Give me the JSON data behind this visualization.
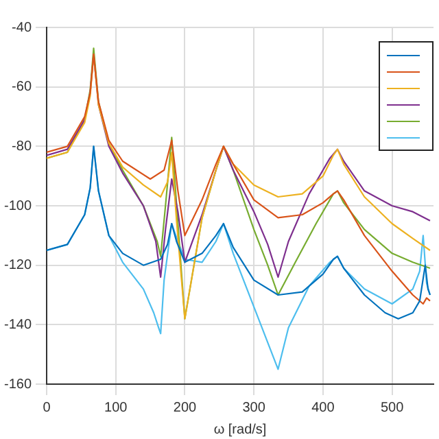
{
  "chart_data": {
    "type": "line",
    "xlabel": "ω [rad/s]",
    "xlim": [
      0,
      560
    ],
    "ylim": [
      -160,
      -40
    ],
    "xticks": [
      0,
      100,
      200,
      300,
      400,
      500
    ],
    "yticks": [
      -160,
      -140,
      -120,
      -100,
      -80,
      -60,
      -40
    ],
    "grid": true,
    "marker": "none",
    "series": [
      {
        "color": "#0072bd",
        "x": [
          0,
          30,
          55,
          63,
          68,
          75,
          90,
          110,
          140,
          165,
          175,
          181,
          188,
          200,
          225,
          245,
          256,
          270,
          300,
          335,
          370,
          400,
          415,
          421,
          430,
          460,
          490,
          509,
          530,
          540,
          548,
          552,
          555
        ],
        "values": [
          -115,
          -113,
          -103,
          -94,
          -80,
          -95,
          -110,
          -116,
          -120,
          -118,
          -113,
          -106,
          -112,
          -119,
          -116,
          -110,
          -106,
          -114,
          -125,
          -130,
          -129,
          -123,
          -118,
          -117,
          -121,
          -130,
          -136,
          -138,
          -136,
          -132,
          -120,
          -128,
          -130
        ]
      },
      {
        "color": "#d95319",
        "x": [
          0,
          30,
          55,
          63,
          68,
          75,
          90,
          110,
          150,
          170,
          181,
          190,
          200,
          225,
          245,
          256,
          270,
          300,
          335,
          370,
          400,
          415,
          421,
          430,
          460,
          500,
          530,
          545,
          550,
          555
        ],
        "values": [
          -82,
          -80,
          -70,
          -62,
          -49,
          -65,
          -78,
          -85,
          -91,
          -88,
          -78,
          -95,
          -110,
          -98,
          -86,
          -80,
          -86,
          -98,
          -104,
          -103,
          -99,
          -96,
          -95,
          -98,
          -110,
          -122,
          -130,
          -133,
          -131,
          -132
        ]
      },
      {
        "color": "#edb120",
        "x": [
          0,
          30,
          55,
          63,
          68,
          75,
          90,
          110,
          140,
          165,
          175,
          181,
          188,
          200,
          225,
          245,
          256,
          270,
          300,
          335,
          370,
          400,
          415,
          421,
          430,
          460,
          500,
          530,
          555
        ],
        "values": [
          -84,
          -82,
          -72,
          -63,
          -49,
          -66,
          -79,
          -87,
          -93,
          -97,
          -92,
          -82,
          -105,
          -138,
          -104,
          -88,
          -80,
          -86,
          -93,
          -97,
          -96,
          -90,
          -83,
          -81,
          -86,
          -97,
          -106,
          -111,
          -115
        ]
      },
      {
        "color": "#7e2f8e",
        "x": [
          0,
          30,
          55,
          63,
          68,
          75,
          90,
          110,
          140,
          158,
          165,
          172,
          181,
          190,
          200,
          225,
          245,
          256,
          270,
          300,
          320,
          335,
          350,
          380,
          410,
          421,
          430,
          460,
          500,
          530,
          555
        ],
        "values": [
          -83,
          -81,
          -71,
          -62,
          -49,
          -66,
          -80,
          -89,
          -100,
          -112,
          -124,
          -108,
          -91,
          -102,
          -119,
          -103,
          -88,
          -80,
          -88,
          -102,
          -113,
          -124,
          -112,
          -96,
          -84,
          -81,
          -85,
          -95,
          -100,
          -102,
          -105
        ]
      },
      {
        "color": "#77ac30",
        "x": [
          0,
          30,
          55,
          63,
          68,
          75,
          90,
          110,
          140,
          160,
          165,
          172,
          181,
          190,
          200,
          225,
          245,
          256,
          270,
          300,
          320,
          335,
          360,
          390,
          415,
          421,
          430,
          460,
          500,
          530,
          555
        ],
        "values": [
          -84,
          -82,
          -71,
          -61,
          -47,
          -65,
          -79,
          -88,
          -100,
          -112,
          -117,
          -100,
          -77,
          -106,
          -138,
          -104,
          -88,
          -80,
          -88,
          -108,
          -120,
          -130,
          -119,
          -106,
          -96,
          -95,
          -99,
          -108,
          -116,
          -119,
          -121
        ]
      },
      {
        "color": "#4dbeee",
        "x": [
          0,
          30,
          55,
          63,
          68,
          75,
          90,
          110,
          140,
          155,
          162,
          165,
          170,
          181,
          190,
          200,
          225,
          245,
          256,
          270,
          300,
          320,
          335,
          350,
          380,
          410,
          421,
          430,
          460,
          500,
          530,
          540,
          545,
          550,
          555
        ],
        "values": [
          -115,
          -113,
          -103,
          -94,
          -80,
          -95,
          -110,
          -119,
          -128,
          -136,
          -141,
          -143,
          -125,
          -106,
          -112,
          -118,
          -119,
          -112,
          -106,
          -116,
          -134,
          -146,
          -155,
          -141,
          -127,
          -119,
          -117,
          -121,
          -128,
          -133,
          -128,
          -122,
          -110,
          -126,
          -130
        ]
      }
    ]
  }
}
